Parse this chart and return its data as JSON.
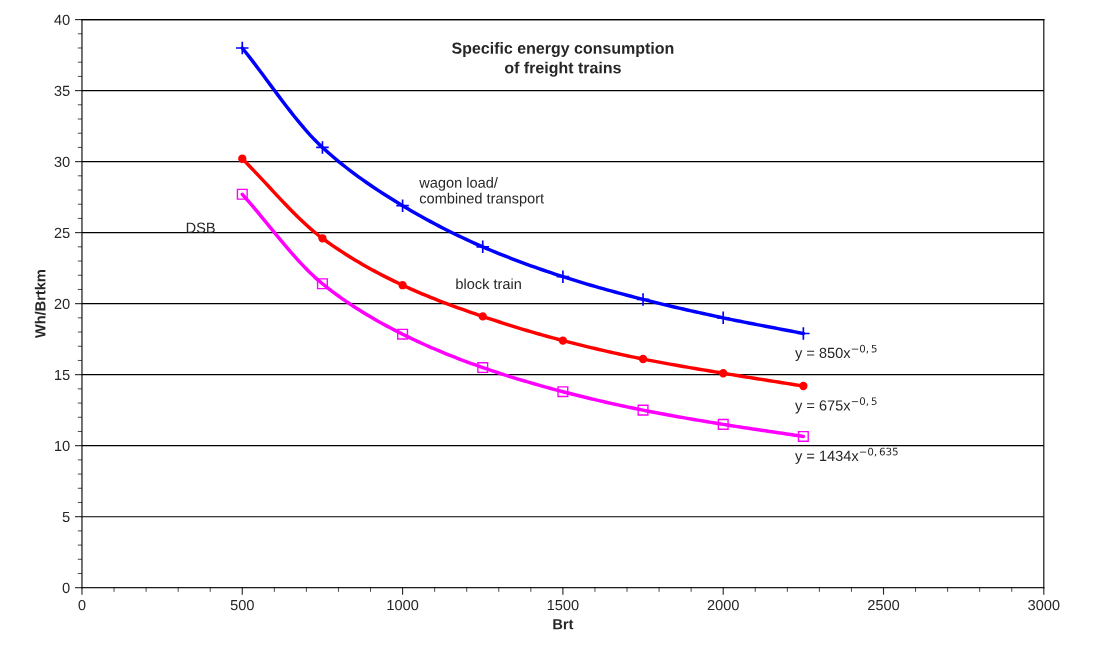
{
  "chart_data": {
    "type": "line",
    "title": "Specific energy consumption\nof freight trains",
    "xlabel": "Brt",
    "ylabel": "Wh/Brtkm",
    "x": [
      500,
      750,
      1000,
      1250,
      1500,
      1750,
      2000,
      2250
    ],
    "series": [
      {
        "name": "wagon load/\ncombined transport",
        "color": "#0000ff",
        "marker": "cross",
        "values": [
          38.0,
          31.0,
          26.9,
          24.0,
          21.9,
          20.3,
          19.0,
          17.9
        ]
      },
      {
        "name": "block train",
        "color": "#ff0000",
        "marker": "circle",
        "values": [
          30.2,
          24.6,
          21.3,
          19.1,
          17.4,
          16.1,
          15.1,
          14.2
        ]
      },
      {
        "name": "DSB",
        "color": "#ff00ff",
        "marker": "square",
        "values": [
          27.7,
          21.4,
          17.85,
          15.5,
          13.8,
          12.5,
          11.5,
          10.65
        ]
      }
    ],
    "annotations": [
      "y = 850x$^{−0,5}$",
      "y = 675x$^{−0,5}$",
      "y = 1434x$^{−0,635}$"
    ],
    "xlim": [
      0,
      3000
    ],
    "xticks": [
      0,
      500,
      1000,
      1500,
      2000,
      2500,
      3000
    ],
    "ylim": [
      0,
      40
    ],
    "yticks": [
      0,
      5,
      10,
      15,
      20,
      25,
      30,
      35,
      40
    ],
    "grid": "y",
    "legend": false,
    "line_style": "solid"
  }
}
